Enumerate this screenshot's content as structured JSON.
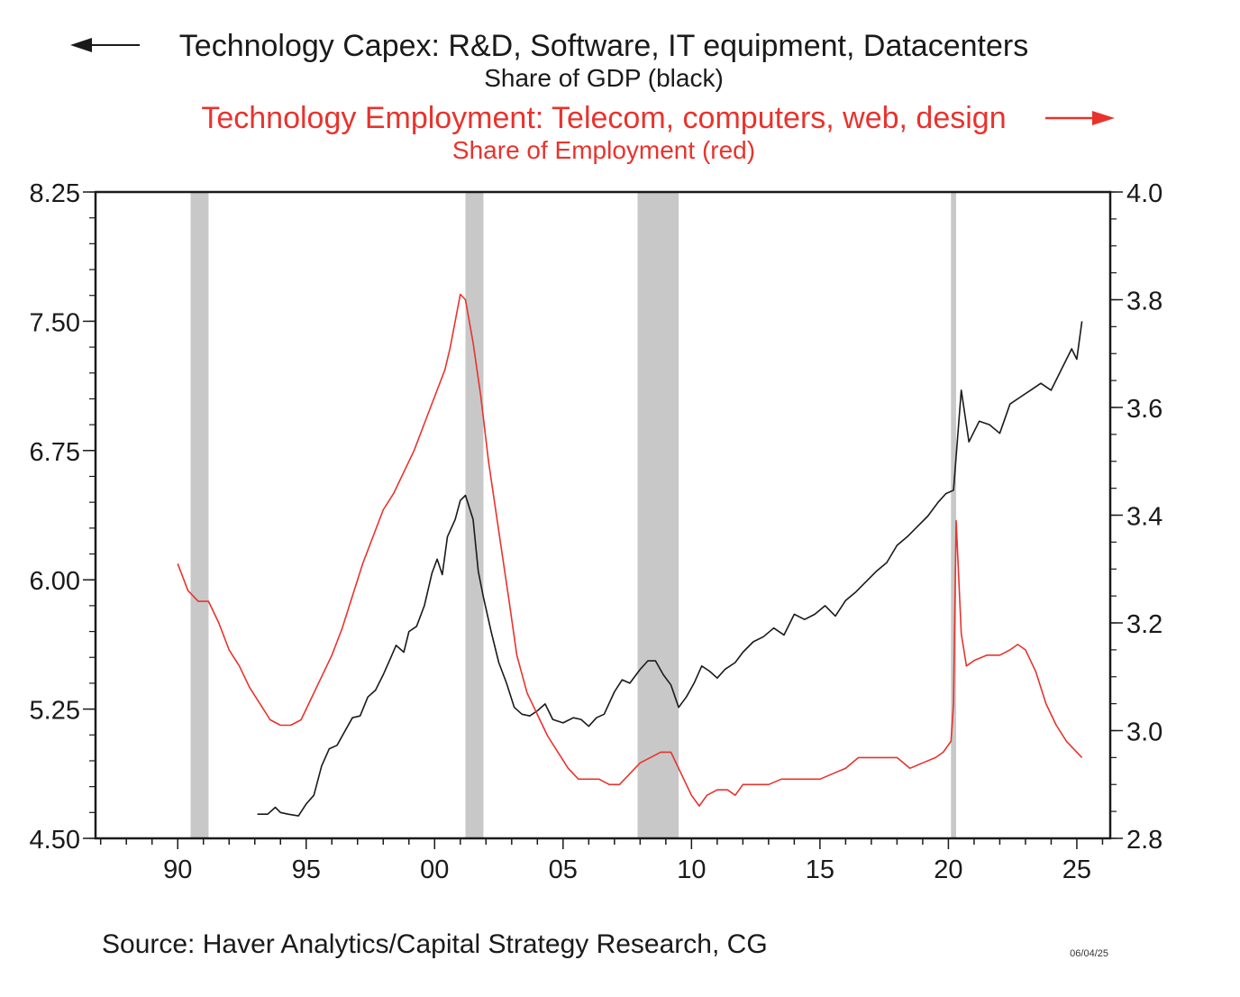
{
  "chart_data": {
    "type": "line",
    "title_lines": [
      "Technology Capex: R&D, Software, IT equipment, Datacenters",
      "Share of GDP (black)",
      "Technology Employment: Telecom, computers, web, design",
      "Share of Employment (red)"
    ],
    "source": "Source:  Haver Analytics/Capital Strategy Research, CG",
    "date_stamp": "06/04/25",
    "x_ticks": [
      {
        "label": "90",
        "year": 1990
      },
      {
        "label": "95",
        "year": 1995
      },
      {
        "label": "00",
        "year": 2000
      },
      {
        "label": "05",
        "year": 2005
      },
      {
        "label": "10",
        "year": 2010
      },
      {
        "label": "15",
        "year": 2015
      },
      {
        "label": "20",
        "year": 2020
      },
      {
        "label": "25",
        "year": 2025
      }
    ],
    "xlim": [
      1986.8,
      2026.3
    ],
    "left_axis": {
      "ylim": [
        4.5,
        8.25
      ],
      "ticks": [
        "4.50",
        "5.25",
        "6.00",
        "6.75",
        "7.50",
        "8.25"
      ]
    },
    "right_axis": {
      "ylim": [
        2.8,
        4.0
      ],
      "ticks": [
        "2.8",
        "3.0",
        "3.2",
        "3.4",
        "3.6",
        "3.8",
        "4.0"
      ]
    },
    "recessions": [
      [
        1990.5,
        1991.2
      ],
      [
        2001.2,
        2001.9
      ],
      [
        2007.9,
        2009.5
      ],
      [
        2020.1,
        2020.3
      ]
    ],
    "colors": {
      "capex": "#1a1a1a",
      "employment": "#e8332d",
      "recession": "#c8c8c8",
      "arrow_black": "#1a1a1a",
      "arrow_red": "#e8332d"
    },
    "series": [
      {
        "axis": "left",
        "color": "#1a1a1a",
        "points": [
          [
            1993.1,
            4.64
          ],
          [
            1993.5,
            4.64
          ],
          [
            1993.8,
            4.68
          ],
          [
            1994.0,
            4.65
          ],
          [
            1994.3,
            4.64
          ],
          [
            1994.7,
            4.63
          ],
          [
            1995.0,
            4.7
          ],
          [
            1995.3,
            4.75
          ],
          [
            1995.6,
            4.92
          ],
          [
            1995.9,
            5.02
          ],
          [
            1996.2,
            5.04
          ],
          [
            1996.5,
            5.12
          ],
          [
            1996.8,
            5.2
          ],
          [
            1997.1,
            5.21
          ],
          [
            1997.4,
            5.32
          ],
          [
            1997.7,
            5.36
          ],
          [
            1998.0,
            5.45
          ],
          [
            1998.3,
            5.55
          ],
          [
            1998.5,
            5.62
          ],
          [
            1998.8,
            5.58
          ],
          [
            1999.0,
            5.7
          ],
          [
            1999.3,
            5.73
          ],
          [
            1999.6,
            5.85
          ],
          [
            1999.9,
            6.04
          ],
          [
            2000.1,
            6.12
          ],
          [
            2000.3,
            6.03
          ],
          [
            2000.5,
            6.25
          ],
          [
            2000.8,
            6.35
          ],
          [
            2001.0,
            6.46
          ],
          [
            2001.2,
            6.49
          ],
          [
            2001.5,
            6.35
          ],
          [
            2001.7,
            6.05
          ],
          [
            2001.9,
            5.9
          ],
          [
            2002.2,
            5.7
          ],
          [
            2002.5,
            5.52
          ],
          [
            2002.8,
            5.4
          ],
          [
            2003.1,
            5.26
          ],
          [
            2003.4,
            5.22
          ],
          [
            2003.7,
            5.21
          ],
          [
            2004.0,
            5.24
          ],
          [
            2004.3,
            5.28
          ],
          [
            2004.6,
            5.19
          ],
          [
            2005.0,
            5.17
          ],
          [
            2005.4,
            5.2
          ],
          [
            2005.7,
            5.19
          ],
          [
            2006.0,
            5.15
          ],
          [
            2006.3,
            5.2
          ],
          [
            2006.6,
            5.22
          ],
          [
            2007.0,
            5.35
          ],
          [
            2007.3,
            5.42
          ],
          [
            2007.6,
            5.4
          ],
          [
            2008.0,
            5.48
          ],
          [
            2008.3,
            5.53
          ],
          [
            2008.6,
            5.53
          ],
          [
            2008.9,
            5.45
          ],
          [
            2009.2,
            5.39
          ],
          [
            2009.5,
            5.26
          ],
          [
            2009.8,
            5.32
          ],
          [
            2010.1,
            5.4
          ],
          [
            2010.4,
            5.5
          ],
          [
            2010.7,
            5.47
          ],
          [
            2011.0,
            5.43
          ],
          [
            2011.3,
            5.48
          ],
          [
            2011.7,
            5.52
          ],
          [
            2012.0,
            5.58
          ],
          [
            2012.4,
            5.64
          ],
          [
            2012.8,
            5.67
          ],
          [
            2013.2,
            5.72
          ],
          [
            2013.6,
            5.68
          ],
          [
            2014.0,
            5.8
          ],
          [
            2014.4,
            5.77
          ],
          [
            2014.8,
            5.8
          ],
          [
            2015.2,
            5.85
          ],
          [
            2015.6,
            5.79
          ],
          [
            2016.0,
            5.88
          ],
          [
            2016.4,
            5.93
          ],
          [
            2016.8,
            5.99
          ],
          [
            2017.2,
            6.05
          ],
          [
            2017.6,
            6.1
          ],
          [
            2018.0,
            6.2
          ],
          [
            2018.4,
            6.25
          ],
          [
            2018.8,
            6.31
          ],
          [
            2019.2,
            6.37
          ],
          [
            2019.6,
            6.45
          ],
          [
            2019.9,
            6.5
          ],
          [
            2020.2,
            6.52
          ],
          [
            2020.5,
            7.1
          ],
          [
            2020.8,
            6.8
          ],
          [
            2021.2,
            6.92
          ],
          [
            2021.6,
            6.9
          ],
          [
            2022.0,
            6.85
          ],
          [
            2022.4,
            7.02
          ],
          [
            2022.8,
            7.06
          ],
          [
            2023.2,
            7.1
          ],
          [
            2023.6,
            7.14
          ],
          [
            2024.0,
            7.1
          ],
          [
            2024.4,
            7.22
          ],
          [
            2024.8,
            7.34
          ],
          [
            2025.0,
            7.28
          ],
          [
            2025.2,
            7.5
          ]
        ]
      },
      {
        "axis": "right",
        "color": "#e8332d",
        "points": [
          [
            1990.0,
            3.31
          ],
          [
            1990.4,
            3.26
          ],
          [
            1990.8,
            3.24
          ],
          [
            1991.2,
            3.24
          ],
          [
            1991.6,
            3.2
          ],
          [
            1992.0,
            3.15
          ],
          [
            1992.4,
            3.12
          ],
          [
            1992.8,
            3.08
          ],
          [
            1993.2,
            3.05
          ],
          [
            1993.6,
            3.02
          ],
          [
            1994.0,
            3.01
          ],
          [
            1994.4,
            3.01
          ],
          [
            1994.8,
            3.02
          ],
          [
            1995.2,
            3.06
          ],
          [
            1995.6,
            3.1
          ],
          [
            1996.0,
            3.14
          ],
          [
            1996.4,
            3.19
          ],
          [
            1996.8,
            3.25
          ],
          [
            1997.2,
            3.31
          ],
          [
            1997.6,
            3.36
          ],
          [
            1998.0,
            3.41
          ],
          [
            1998.4,
            3.44
          ],
          [
            1998.8,
            3.48
          ],
          [
            1999.2,
            3.52
          ],
          [
            1999.6,
            3.57
          ],
          [
            2000.0,
            3.62
          ],
          [
            2000.4,
            3.67
          ],
          [
            2000.6,
            3.71
          ],
          [
            2000.8,
            3.76
          ],
          [
            2001.0,
            3.81
          ],
          [
            2001.2,
            3.8
          ],
          [
            2001.5,
            3.72
          ],
          [
            2001.8,
            3.62
          ],
          [
            2002.1,
            3.5
          ],
          [
            2002.5,
            3.37
          ],
          [
            2002.9,
            3.24
          ],
          [
            2003.2,
            3.14
          ],
          [
            2003.6,
            3.07
          ],
          [
            2004.0,
            3.03
          ],
          [
            2004.4,
            2.99
          ],
          [
            2004.8,
            2.96
          ],
          [
            2005.2,
            2.93
          ],
          [
            2005.6,
            2.91
          ],
          [
            2006.0,
            2.91
          ],
          [
            2006.4,
            2.91
          ],
          [
            2006.8,
            2.9
          ],
          [
            2007.2,
            2.9
          ],
          [
            2007.6,
            2.92
          ],
          [
            2008.0,
            2.94
          ],
          [
            2008.4,
            2.95
          ],
          [
            2008.8,
            2.96
          ],
          [
            2009.2,
            2.96
          ],
          [
            2009.6,
            2.92
          ],
          [
            2010.0,
            2.88
          ],
          [
            2010.3,
            2.86
          ],
          [
            2010.6,
            2.88
          ],
          [
            2011.0,
            2.89
          ],
          [
            2011.4,
            2.89
          ],
          [
            2011.7,
            2.88
          ],
          [
            2012.0,
            2.9
          ],
          [
            2012.5,
            2.9
          ],
          [
            2013.0,
            2.9
          ],
          [
            2013.5,
            2.91
          ],
          [
            2014.0,
            2.91
          ],
          [
            2014.5,
            2.91
          ],
          [
            2015.0,
            2.91
          ],
          [
            2015.5,
            2.92
          ],
          [
            2016.0,
            2.93
          ],
          [
            2016.5,
            2.95
          ],
          [
            2017.0,
            2.95
          ],
          [
            2017.5,
            2.95
          ],
          [
            2018.0,
            2.95
          ],
          [
            2018.5,
            2.93
          ],
          [
            2019.0,
            2.94
          ],
          [
            2019.5,
            2.95
          ],
          [
            2019.8,
            2.96
          ],
          [
            2020.1,
            2.98
          ],
          [
            2020.2,
            3.05
          ],
          [
            2020.3,
            3.39
          ],
          [
            2020.5,
            3.18
          ],
          [
            2020.7,
            3.12
          ],
          [
            2021.0,
            3.13
          ],
          [
            2021.5,
            3.14
          ],
          [
            2022.0,
            3.14
          ],
          [
            2022.4,
            3.15
          ],
          [
            2022.7,
            3.16
          ],
          [
            2023.0,
            3.15
          ],
          [
            2023.4,
            3.11
          ],
          [
            2023.8,
            3.05
          ],
          [
            2024.2,
            3.01
          ],
          [
            2024.6,
            2.98
          ],
          [
            2025.0,
            2.96
          ],
          [
            2025.2,
            2.95
          ]
        ]
      }
    ]
  }
}
